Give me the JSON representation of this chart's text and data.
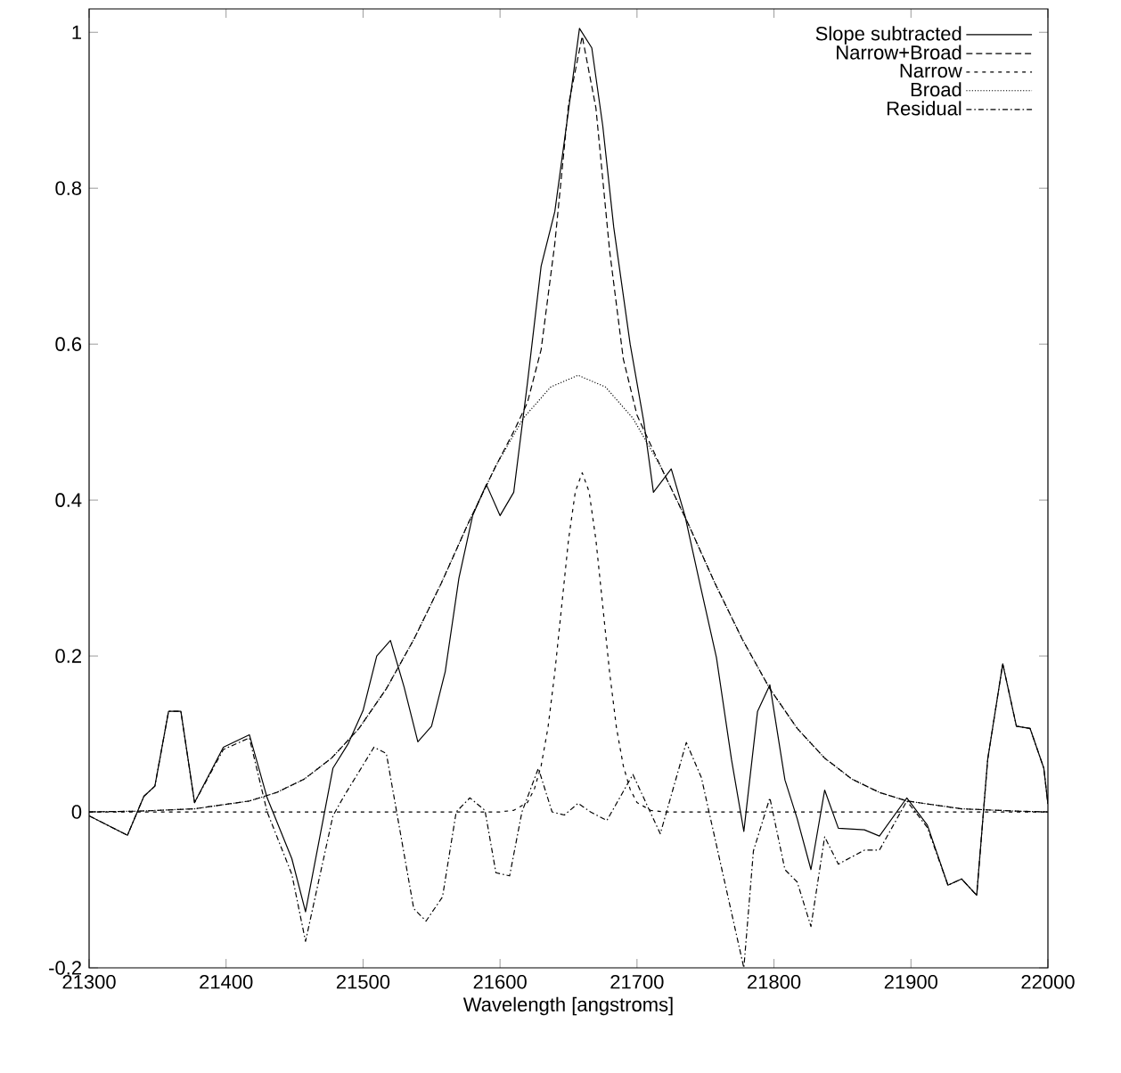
{
  "chart_data": {
    "type": "line",
    "xlabel": "Wavelength [angstroms]",
    "xlim": [
      21300,
      22000
    ],
    "ylim": [
      -0.2,
      1.03
    ],
    "xticks": [
      21300,
      21400,
      21500,
      21600,
      21700,
      21800,
      21900,
      22000
    ],
    "yticks": [
      -0.2,
      0,
      0.2,
      0.4,
      0.6,
      0.8,
      1
    ],
    "legend": "top right",
    "grid": false,
    "series": [
      {
        "name": "Slope subtracted",
        "color": "#000000",
        "line_style": "solid",
        "x": [
          21300,
          21328,
          21340,
          21348,
          21358,
          21367,
          21377,
          21398,
          21417,
          21430,
          21448,
          21458,
          21478,
          21489,
          21500,
          21510,
          21520,
          21530,
          21540,
          21550,
          21560,
          21570,
          21580,
          21590,
          21600,
          21610,
          21620,
          21630,
          21640,
          21650,
          21658,
          21667,
          21675,
          21683,
          21695,
          21705,
          21712,
          21725,
          21735,
          21745,
          21758,
          21769,
          21778,
          21788,
          21797,
          21808,
          21817,
          21827,
          21837,
          21847,
          21866,
          21877,
          21897,
          21912,
          21927,
          21937,
          21948,
          21956,
          21967,
          21977,
          21987,
          21997,
          22000
        ],
        "values": [
          -0.005,
          -0.03,
          0.02,
          0.033,
          0.129,
          0.129,
          0.012,
          0.083,
          0.099,
          0.018,
          -0.06,
          -0.128,
          0.056,
          0.087,
          0.13,
          0.2,
          0.22,
          0.16,
          0.09,
          0.11,
          0.18,
          0.3,
          0.38,
          0.42,
          0.38,
          0.41,
          0.55,
          0.7,
          0.77,
          0.9,
          1.005,
          0.98,
          0.88,
          0.75,
          0.6,
          0.5,
          0.41,
          0.44,
          0.38,
          0.3,
          0.198,
          0.067,
          -0.025,
          0.129,
          0.163,
          0.041,
          -0.009,
          -0.074,
          0.028,
          -0.021,
          -0.023,
          -0.031,
          0.018,
          -0.017,
          -0.094,
          -0.086,
          -0.107,
          0.067,
          0.19,
          0.11,
          0.107,
          0.056,
          0.01
        ]
      },
      {
        "name": "Narrow+Broad",
        "color": "#000000",
        "line_style": "dashed",
        "x": [
          21300,
          21337,
          21377,
          21417,
          21437,
          21457,
          21477,
          21497,
          21517,
          21537,
          21557,
          21577,
          21597,
          21610,
          21620,
          21630,
          21640,
          21650,
          21660,
          21670,
          21680,
          21690,
          21700,
          21717,
          21737,
          21757,
          21777,
          21797,
          21817,
          21837,
          21857,
          21877,
          21897,
          21937,
          21977,
          22000
        ],
        "values": [
          0,
          0.001,
          0.004,
          0.014,
          0.025,
          0.042,
          0.069,
          0.107,
          0.158,
          0.221,
          0.293,
          0.371,
          0.444,
          0.488,
          0.525,
          0.593,
          0.729,
          0.907,
          0.995,
          0.903,
          0.72,
          0.581,
          0.509,
          0.444,
          0.371,
          0.293,
          0.221,
          0.158,
          0.107,
          0.069,
          0.042,
          0.025,
          0.014,
          0.004,
          0.001,
          0
        ]
      },
      {
        "name": "Narrow",
        "color": "#000000",
        "line_style": "densely dashed",
        "x": [
          21300,
          21600,
          21610,
          21620,
          21625,
          21630,
          21635,
          21640,
          21645,
          21650,
          21655,
          21660,
          21665,
          21670,
          21675,
          21680,
          21685,
          21690,
          21695,
          21700,
          21710,
          21720,
          22000
        ],
        "values": [
          0,
          0,
          0.002,
          0.012,
          0.029,
          0.059,
          0.108,
          0.179,
          0.264,
          0.349,
          0.411,
          0.435,
          0.411,
          0.349,
          0.264,
          0.179,
          0.108,
          0.059,
          0.029,
          0.012,
          0.002,
          0,
          0
        ]
      },
      {
        "name": "Broad",
        "color": "#000000",
        "line_style": "dotted",
        "x": [
          21300,
          21337,
          21377,
          21417,
          21437,
          21457,
          21477,
          21497,
          21517,
          21537,
          21557,
          21577,
          21597,
          21617,
          21637,
          21657,
          21677,
          21697,
          21717,
          21737,
          21757,
          21777,
          21797,
          21817,
          21837,
          21857,
          21877,
          21897,
          21937,
          21977,
          22000
        ],
        "values": [
          0,
          0.001,
          0.004,
          0.014,
          0.025,
          0.042,
          0.069,
          0.107,
          0.158,
          0.221,
          0.293,
          0.371,
          0.444,
          0.505,
          0.545,
          0.56,
          0.545,
          0.505,
          0.444,
          0.371,
          0.293,
          0.221,
          0.158,
          0.107,
          0.069,
          0.042,
          0.025,
          0.014,
          0.004,
          0.001,
          0
        ]
      },
      {
        "name": "Residual",
        "color": "#000000",
        "line_style": "dashdot",
        "x": [
          21300,
          21328,
          21340,
          21348,
          21358,
          21367,
          21377,
          21398,
          21417,
          21430,
          21448,
          21458,
          21478,
          21486,
          21508,
          21517,
          21537,
          21546,
          21558,
          21568,
          21578,
          21589,
          21597,
          21607,
          21616,
          21628,
          21638,
          21647,
          21657,
          21666,
          21678,
          21697,
          21717,
          21736,
          21747,
          21778,
          21785,
          21797,
          21808,
          21817,
          21827,
          21837,
          21847,
          21866,
          21877,
          21897,
          21912,
          21927,
          21937,
          21948,
          21956,
          21967,
          21977,
          21987,
          21997,
          22000
        ],
        "values": [
          -0.005,
          -0.03,
          0.02,
          0.033,
          0.129,
          0.129,
          0.012,
          0.08,
          0.095,
          0.0,
          -0.08,
          -0.166,
          -0.005,
          0.02,
          0.083,
          0.075,
          -0.124,
          -0.14,
          -0.109,
          0,
          0.018,
          0.002,
          -0.078,
          -0.082,
          0,
          0.056,
          0,
          -0.004,
          0.011,
          0,
          -0.011,
          0.048,
          -0.028,
          0.089,
          0.044,
          -0.2,
          -0.05,
          0.018,
          -0.074,
          -0.09,
          -0.147,
          -0.032,
          -0.067,
          -0.049,
          -0.049,
          0.014,
          -0.02,
          -0.094,
          -0.086,
          -0.107,
          0.067,
          0.19,
          0.11,
          0.107,
          0.056,
          0.01
        ]
      }
    ]
  }
}
